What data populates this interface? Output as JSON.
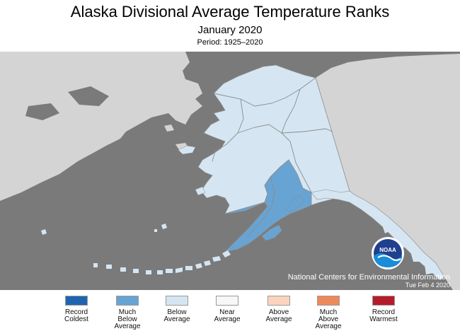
{
  "title": "Alaska Divisional Average Temperature Ranks",
  "subtitle": "January 2020",
  "period": "Period: 1925–2020",
  "credit": {
    "org": "National Centers for Environmental Information",
    "date": "Tue Feb  4 2020",
    "logo_text": "NOAA"
  },
  "colors": {
    "ocean": "#7a7a7a",
    "foreign_land": "#d4d4d4",
    "division_border": "#8c8c8c",
    "record_coldest": "#1f64b1",
    "much_below_average": "#67a4d4",
    "below_average": "#d5e6f2",
    "near_average": "#f7f7f7",
    "above_average": "#fcd4bd",
    "much_above_average": "#ee8a5a",
    "record_warmest": "#b51c2a"
  },
  "divisions": [
    {
      "name": "North Slope",
      "rank_category": "below_average"
    },
    {
      "name": "West Coast",
      "rank_category": "below_average"
    },
    {
      "name": "Central Interior",
      "rank_category": "below_average"
    },
    {
      "name": "Northeast Interior",
      "rank_category": "below_average"
    },
    {
      "name": "Cook Inlet",
      "rank_category": "much_below_average"
    },
    {
      "name": "Bristol Bay",
      "rank_category": "much_below_average"
    },
    {
      "name": "Aleutians",
      "rank_category": "below_average"
    },
    {
      "name": "Northwest Gulf",
      "rank_category": "much_below_average"
    },
    {
      "name": "Northeast Gulf",
      "rank_category": "below_average"
    },
    {
      "name": "North Panhandle",
      "rank_category": "below_average"
    },
    {
      "name": "Central Panhandle",
      "rank_category": "below_average"
    },
    {
      "name": "South Panhandle",
      "rank_category": "below_average"
    }
  ],
  "legend": [
    {
      "label": "Record\nColdest",
      "color": "#1f64b1"
    },
    {
      "label": "Much\nBelow\nAverage",
      "color": "#67a4d4"
    },
    {
      "label": "Below\nAverage",
      "color": "#d5e6f2"
    },
    {
      "label": "Near\nAverage",
      "color": "#f7f7f7"
    },
    {
      "label": "Above\nAverage",
      "color": "#fcd4bd"
    },
    {
      "label": "Much\nAbove\nAverage",
      "color": "#ee8a5a"
    },
    {
      "label": "Record\nWarmest",
      "color": "#b51c2a"
    }
  ]
}
